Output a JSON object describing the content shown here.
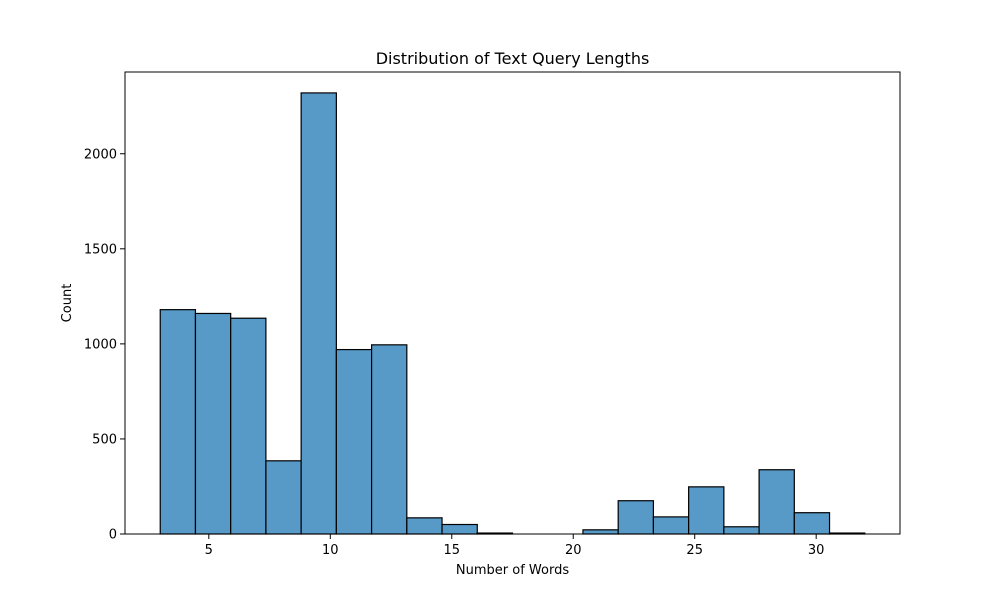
{
  "chart_data": {
    "type": "bar",
    "title": "Distribution of Text Query Lengths",
    "xlabel": "Number of Words",
    "ylabel": "Count",
    "bar_color": "#5799C7",
    "edge_color": "#000000",
    "xlim": [
      1.55,
      33.45
    ],
    "ylim": [
      0,
      2430
    ],
    "x_ticks": [
      5,
      10,
      15,
      20,
      25,
      30
    ],
    "y_ticks": [
      0,
      500,
      1000,
      1500,
      2000
    ],
    "bins": [
      {
        "x0": 3.0,
        "x1": 4.45,
        "count": 1180
      },
      {
        "x0": 4.45,
        "x1": 5.9,
        "count": 1160
      },
      {
        "x0": 5.9,
        "x1": 7.35,
        "count": 1135
      },
      {
        "x0": 7.35,
        "x1": 8.8,
        "count": 385
      },
      {
        "x0": 8.8,
        "x1": 10.25,
        "count": 2320
      },
      {
        "x0": 10.25,
        "x1": 11.7,
        "count": 970
      },
      {
        "x0": 11.7,
        "x1": 13.15,
        "count": 995
      },
      {
        "x0": 13.15,
        "x1": 14.6,
        "count": 85
      },
      {
        "x0": 14.6,
        "x1": 16.05,
        "count": 50
      },
      {
        "x0": 16.05,
        "x1": 17.5,
        "count": 5
      },
      {
        "x0": 17.5,
        "x1": 18.95,
        "count": 0
      },
      {
        "x0": 18.95,
        "x1": 20.4,
        "count": 0
      },
      {
        "x0": 20.4,
        "x1": 21.85,
        "count": 22
      },
      {
        "x0": 21.85,
        "x1": 23.3,
        "count": 175
      },
      {
        "x0": 23.3,
        "x1": 24.75,
        "count": 90
      },
      {
        "x0": 24.75,
        "x1": 26.2,
        "count": 248
      },
      {
        "x0": 26.2,
        "x1": 27.65,
        "count": 38
      },
      {
        "x0": 27.65,
        "x1": 29.1,
        "count": 338
      },
      {
        "x0": 29.1,
        "x1": 30.55,
        "count": 112
      },
      {
        "x0": 30.55,
        "x1": 32.0,
        "count": 5
      }
    ]
  }
}
